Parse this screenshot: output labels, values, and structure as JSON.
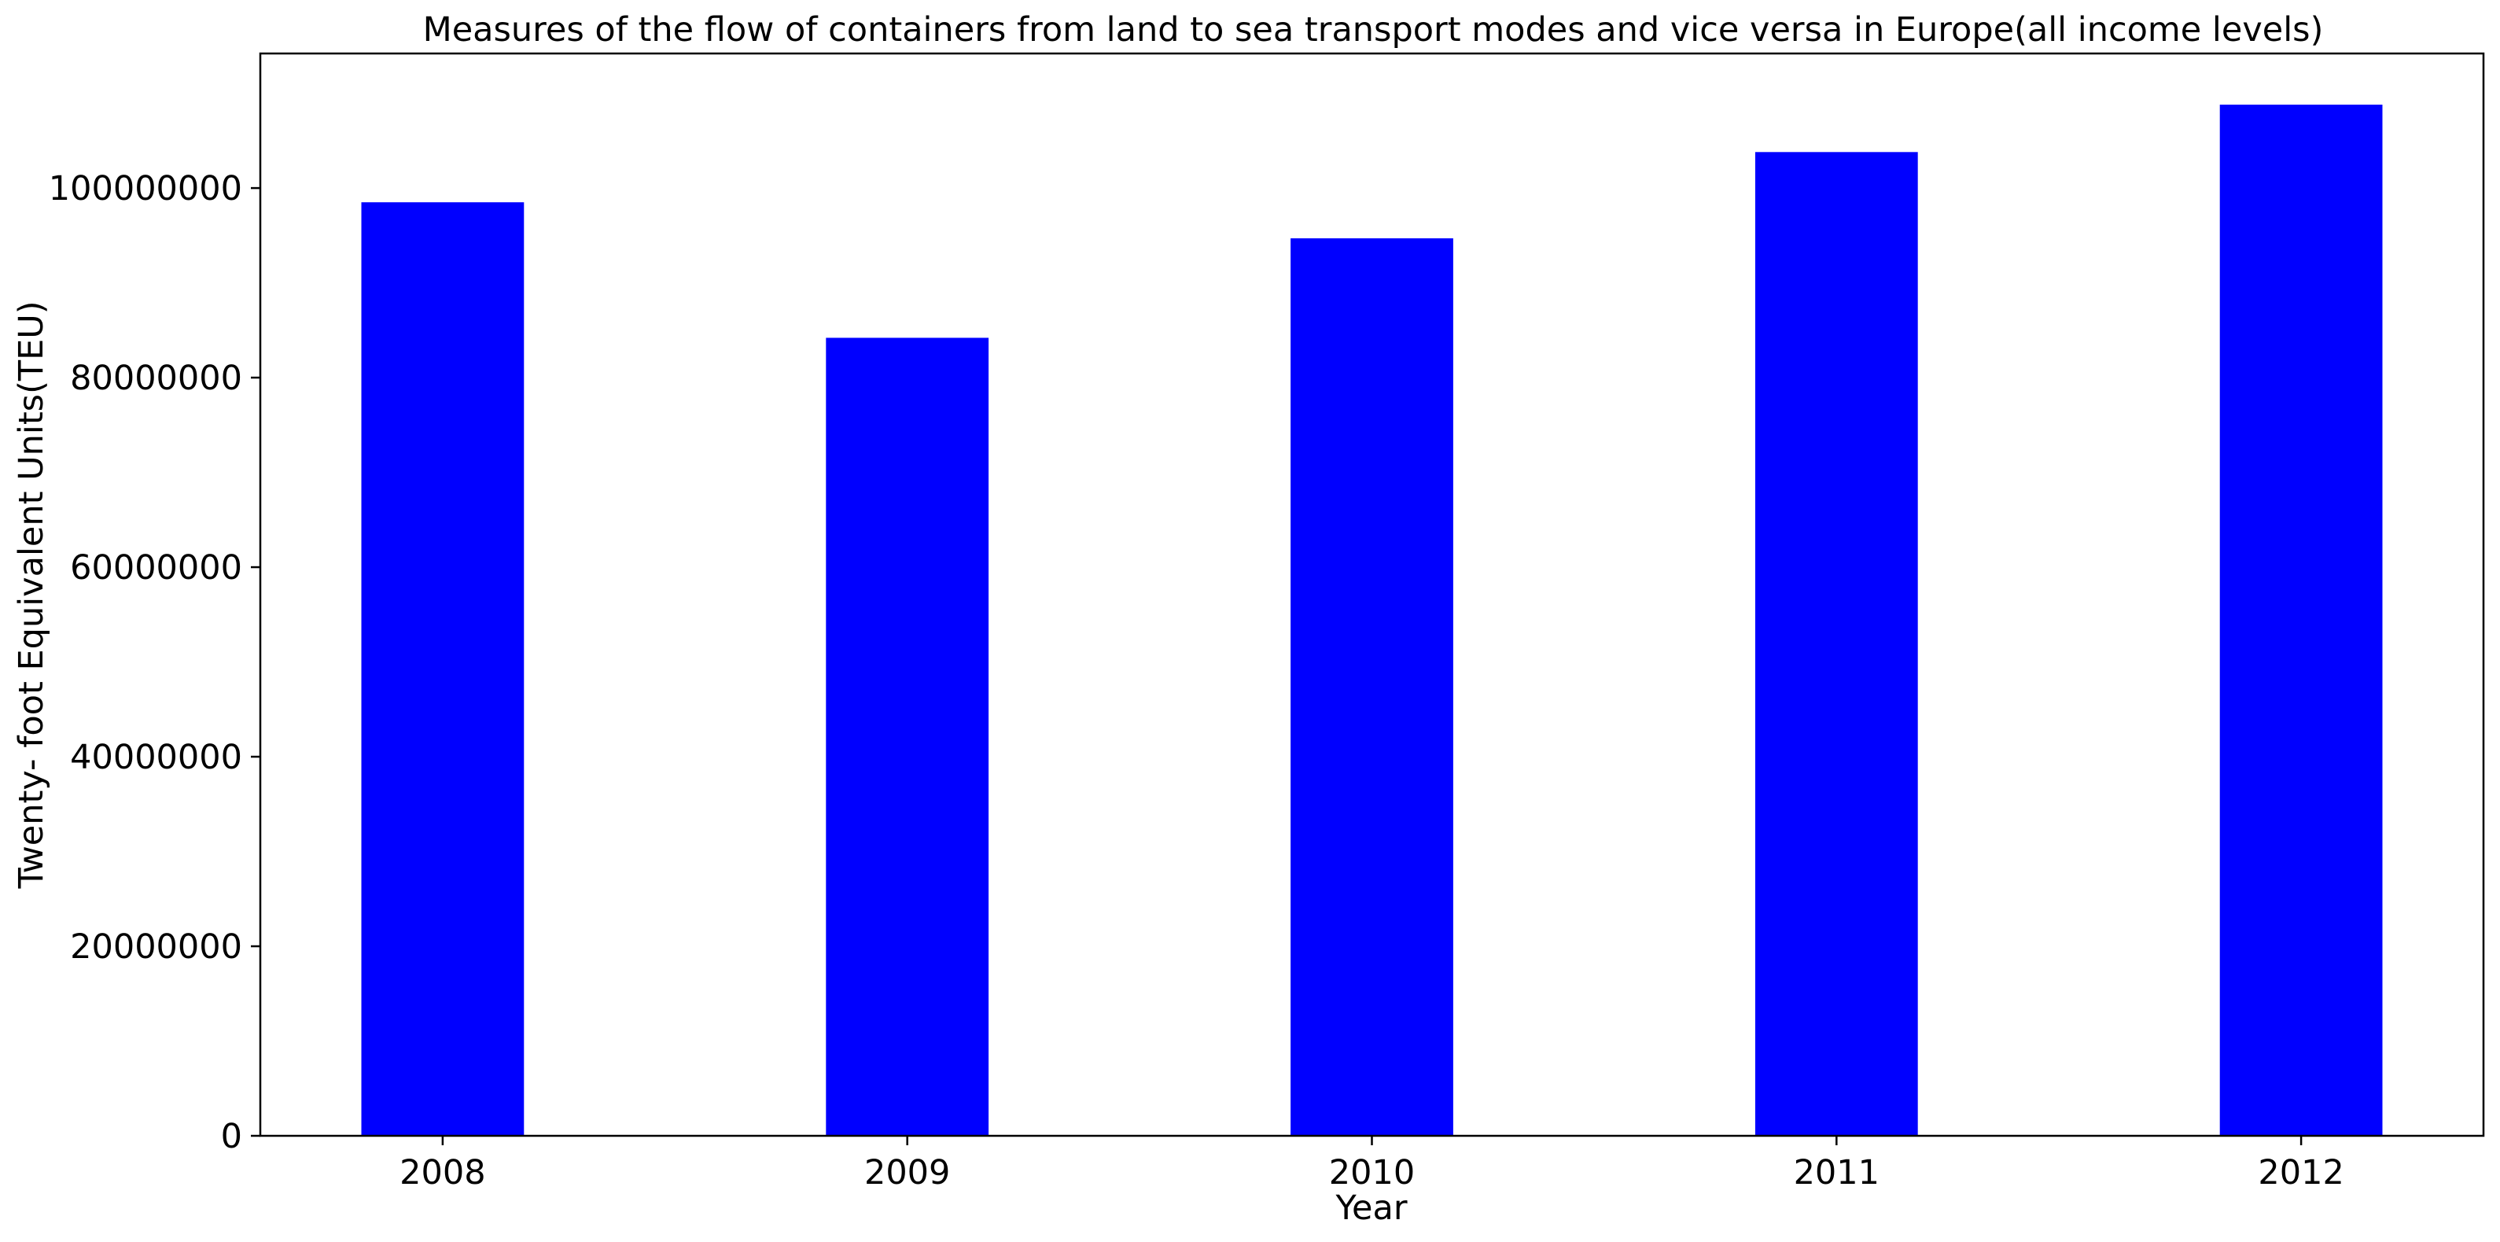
{
  "chart_data": {
    "type": "bar",
    "title": "Measures of the flow of containers from land to sea transport modes and vice versa in Europe(all income levels)",
    "xlabel": "Year",
    "ylabel": "Twenty- foot Equivalent Units(TEU)",
    "categories": [
      "2008",
      "2009",
      "2010",
      "2011",
      "2012"
    ],
    "values": [
      98500000,
      84200000,
      94700000,
      103800000,
      108800000
    ],
    "ylim": [
      0,
      114200000
    ],
    "yticks": [
      0,
      20000000,
      40000000,
      60000000,
      80000000,
      100000000
    ],
    "ytick_labels": [
      "0",
      "20000000",
      "40000000",
      "60000000",
      "80000000",
      "100000000"
    ],
    "bar_color": "#0000ff",
    "grid": false,
    "legend": "none"
  }
}
